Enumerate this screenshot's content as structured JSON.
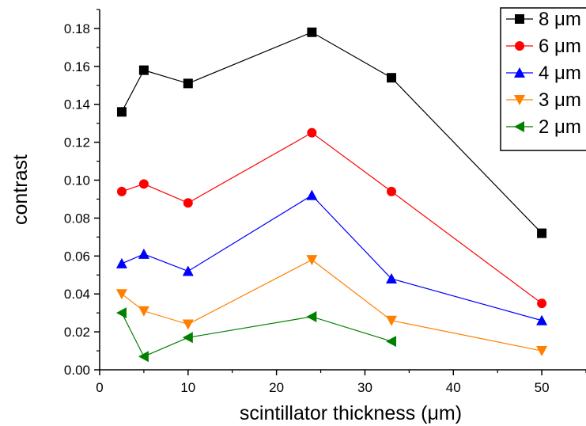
{
  "chart_data": {
    "type": "line",
    "xlabel": "scintillator thickness (μm)",
    "ylabel": "contrast",
    "xlim": [
      0,
      55
    ],
    "ylim": [
      0,
      0.19
    ],
    "x_ticks": [
      "0",
      "10",
      "20",
      "30",
      "40",
      "50"
    ],
    "y_ticks": [
      "0.00",
      "0.02",
      "0.04",
      "0.06",
      "0.08",
      "0.10",
      "0.12",
      "0.14",
      "0.16",
      "0.18"
    ],
    "grid": false,
    "legend_position": "top-right",
    "series": [
      {
        "name": "8 μm",
        "color": "#000000",
        "marker": "square",
        "x": [
          2.5,
          5,
          10,
          24,
          33,
          50
        ],
        "y": [
          0.136,
          0.158,
          0.151,
          0.178,
          0.154,
          0.072
        ]
      },
      {
        "name": "6 μm",
        "color": "#ff0000",
        "marker": "circle",
        "x": [
          2.5,
          5,
          10,
          24,
          33,
          50
        ],
        "y": [
          0.094,
          0.098,
          0.088,
          0.125,
          0.094,
          0.035
        ]
      },
      {
        "name": "4 μm",
        "color": "#0000ff",
        "marker": "triangle-up",
        "x": [
          2.5,
          5,
          10,
          24,
          33,
          50
        ],
        "y": [
          0.056,
          0.061,
          0.052,
          0.092,
          0.048,
          0.026
        ]
      },
      {
        "name": "3 μm",
        "color": "#ff8000",
        "marker": "triangle-down",
        "x": [
          2.5,
          5,
          10,
          24,
          33,
          50
        ],
        "y": [
          0.04,
          0.031,
          0.024,
          0.058,
          0.026,
          0.01
        ]
      },
      {
        "name": "2 μm",
        "color": "#008000",
        "marker": "triangle-left",
        "x": [
          2.5,
          5,
          10,
          24,
          33
        ],
        "y": [
          0.03,
          0.007,
          0.017,
          0.028,
          0.015
        ]
      }
    ]
  }
}
